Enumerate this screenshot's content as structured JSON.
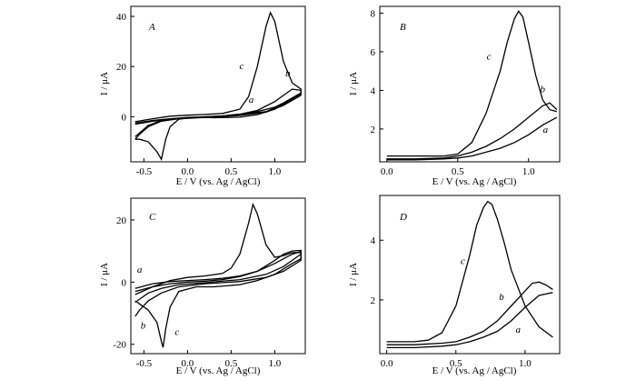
{
  "panels": [
    {
      "panel_label": "A",
      "ylabel": "I / μA",
      "xlabel": "E / V (vs. Ag / AgCl)"
    },
    {
      "panel_label": "B",
      "ylabel": "I / μA",
      "xlabel": "E / V (vs. Ag / AgCl)"
    },
    {
      "panel_label": "C",
      "ylabel": "I / μA",
      "xlabel": "E / V (vs. Ag / AgCl)"
    },
    {
      "panel_label": "D",
      "ylabel": "I / μA",
      "xlabel": "E / V (vs. Ag / AgCl)"
    }
  ],
  "chart_data": [
    {
      "panel": "A",
      "type": "line",
      "xlabel": "E / V (vs. Ag / AgCl)",
      "ylabel": "I / μA",
      "xlim": [
        -0.65,
        1.35
      ],
      "ylim": [
        -18,
        44
      ],
      "xticks": [
        -0.5,
        0.0,
        0.5,
        1.0
      ],
      "xtick_labels": [
        "-0.5",
        "0.0",
        "0.5",
        "1.0"
      ],
      "yticks": [
        0,
        20,
        40
      ],
      "ytick_labels": [
        "0",
        "20",
        "40"
      ],
      "series": [
        {
          "name": "a",
          "x": [
            -0.6,
            -0.4,
            -0.2,
            0.0,
            0.2,
            0.4,
            0.6,
            0.8,
            1.0,
            1.1,
            1.2,
            1.3,
            1.3,
            1.1,
            0.9,
            0.6,
            0.2,
            -0.1,
            -0.3,
            -0.45,
            -0.55,
            -0.6
          ],
          "y": [
            -2.5,
            -1.5,
            -0.8,
            -0.3,
            0.0,
            0.3,
            1.0,
            2.0,
            3.8,
            5.5,
            7.5,
            9.5,
            9.0,
            5.0,
            2.0,
            0.6,
            -0.2,
            -0.7,
            -1.5,
            -3.5,
            -6.5,
            -8.0
          ]
        },
        {
          "name": "b",
          "x": [
            -0.6,
            -0.4,
            -0.2,
            0.0,
            0.2,
            0.4,
            0.6,
            0.8,
            1.0,
            1.1,
            1.2,
            1.3,
            1.3,
            1.1,
            0.9,
            0.6,
            0.2,
            -0.1,
            -0.3,
            -0.45,
            -0.55,
            -0.6
          ],
          "y": [
            -3.0,
            -1.8,
            -1.0,
            -0.5,
            -0.1,
            0.3,
            1.0,
            2.5,
            6.0,
            8.5,
            11.0,
            10.5,
            8.5,
            4.5,
            1.8,
            0.5,
            -0.3,
            -0.8,
            -1.8,
            -4.0,
            -7.0,
            -9.0
          ]
        },
        {
          "name": "c",
          "x": [
            -0.6,
            -0.4,
            -0.2,
            0.0,
            0.2,
            0.4,
            0.6,
            0.7,
            0.8,
            0.9,
            0.95,
            1.0,
            1.1,
            1.2,
            1.3,
            1.3,
            1.2,
            1.0,
            0.8,
            0.6,
            0.3,
            0.1,
            -0.1,
            -0.2,
            -0.25,
            -0.3,
            -0.35,
            -0.45,
            -0.55,
            -0.6
          ],
          "y": [
            -2.0,
            -0.8,
            0.2,
            0.6,
            0.9,
            1.3,
            3.0,
            8.0,
            20.0,
            36.0,
            41.5,
            38.0,
            22.0,
            13.5,
            11.0,
            9.5,
            7.0,
            3.0,
            0.8,
            -0.2,
            -0.4,
            -0.2,
            -1.0,
            -4.0,
            -9.0,
            -17.0,
            -14.0,
            -10.0,
            -9.0,
            -9.0
          ]
        }
      ],
      "curve_labels": [
        {
          "text": "c",
          "x": 0.62,
          "y": 19
        },
        {
          "text": "a",
          "x": 0.73,
          "y": 5.5
        },
        {
          "text": "b",
          "x": 1.15,
          "y": 16
        }
      ]
    },
    {
      "panel": "B",
      "type": "line",
      "xlabel": "E / V (vs. Ag / AgCl)",
      "ylabel": "I / μA",
      "xlim": [
        -0.05,
        1.22
      ],
      "ylim": [
        0.3,
        8.35
      ],
      "xticks": [
        0.0,
        0.5,
        1.0
      ],
      "xtick_labels": [
        "0.0",
        "0.5",
        "1.0"
      ],
      "yticks": [
        2,
        4,
        6,
        8
      ],
      "ytick_labels": [
        "2",
        "4",
        "6",
        "8"
      ],
      "series": [
        {
          "name": "a",
          "x": [
            0.0,
            0.2,
            0.4,
            0.5,
            0.6,
            0.7,
            0.8,
            0.9,
            1.0,
            1.1,
            1.2
          ],
          "y": [
            0.4,
            0.4,
            0.45,
            0.5,
            0.6,
            0.8,
            1.0,
            1.3,
            1.7,
            2.2,
            2.6
          ]
        },
        {
          "name": "b",
          "x": [
            0.0,
            0.2,
            0.4,
            0.5,
            0.6,
            0.7,
            0.8,
            0.9,
            1.0,
            1.1,
            1.15,
            1.2
          ],
          "y": [
            0.45,
            0.45,
            0.5,
            0.6,
            0.8,
            1.1,
            1.5,
            2.0,
            2.6,
            3.2,
            3.35,
            3.0
          ]
        },
        {
          "name": "c",
          "x": [
            0.0,
            0.2,
            0.4,
            0.5,
            0.6,
            0.7,
            0.8,
            0.85,
            0.9,
            0.93,
            0.96,
            1.0,
            1.05,
            1.1,
            1.15,
            1.2
          ],
          "y": [
            0.6,
            0.6,
            0.6,
            0.7,
            1.3,
            2.8,
            5.0,
            6.5,
            7.7,
            8.1,
            7.8,
            6.5,
            4.8,
            3.5,
            3.0,
            2.9
          ]
        }
      ],
      "curve_labels": [
        {
          "text": "c",
          "x": 0.72,
          "y": 5.6
        },
        {
          "text": "b",
          "x": 1.1,
          "y": 3.9
        },
        {
          "text": "a",
          "x": 1.12,
          "y": 1.8
        }
      ]
    },
    {
      "panel": "C",
      "type": "line",
      "xlabel": "E / V (vs. Ag / AgCl)",
      "ylabel": "I / μA",
      "xlim": [
        -0.65,
        1.35
      ],
      "ylim": [
        -23,
        27
      ],
      "xticks": [
        -0.5,
        0.0,
        0.5,
        1.0
      ],
      "xtick_labels": [
        "-0.5",
        "0.0",
        "0.5",
        "1.0"
      ],
      "yticks": [
        -20,
        0,
        20
      ],
      "ytick_labels": [
        "-20",
        "0",
        "20"
      ],
      "series": [
        {
          "name": "a",
          "x": [
            -0.6,
            -0.4,
            -0.2,
            0.0,
            0.2,
            0.4,
            0.6,
            0.8,
            1.0,
            1.1,
            1.2,
            1.3,
            1.3,
            1.1,
            0.9,
            0.6,
            0.2,
            -0.1,
            -0.3,
            -0.45,
            -0.55,
            -0.6
          ],
          "y": [
            -2.0,
            -0.5,
            0.2,
            0.5,
            0.8,
            1.2,
            2.0,
            3.5,
            6.0,
            7.5,
            9.0,
            9.8,
            9.0,
            5.0,
            2.5,
            0.8,
            -0.2,
            -0.8,
            -2.0,
            -3.5,
            -5.5,
            -6.5
          ]
        },
        {
          "name": "b",
          "x": [
            -0.6,
            -0.4,
            -0.2,
            0.0,
            0.2,
            0.4,
            0.6,
            0.8,
            1.0,
            1.1,
            1.2,
            1.3,
            1.3,
            1.1,
            0.9,
            0.6,
            0.2,
            -0.1,
            -0.3,
            -0.45,
            -0.55,
            -0.6
          ],
          "y": [
            -3.0,
            -1.5,
            -0.5,
            0.0,
            0.3,
            0.8,
            1.8,
            3.5,
            7.0,
            9.0,
            10.0,
            10.2,
            7.0,
            3.5,
            1.5,
            0.2,
            -0.5,
            -1.5,
            -3.5,
            -6.0,
            -9.0,
            -11.0
          ]
        },
        {
          "name": "c",
          "x": [
            -0.6,
            -0.4,
            -0.2,
            0.0,
            0.2,
            0.4,
            0.5,
            0.6,
            0.7,
            0.75,
            0.8,
            0.9,
            1.0,
            1.1,
            1.2,
            1.3,
            1.3,
            1.2,
            1.0,
            0.8,
            0.6,
            0.3,
            0.1,
            -0.1,
            -0.2,
            -0.25,
            -0.28,
            -0.3,
            -0.35,
            -0.45,
            -0.55,
            -0.6
          ],
          "y": [
            -4.0,
            -1.5,
            0.5,
            1.5,
            2.0,
            2.8,
            4.5,
            9.0,
            19.0,
            25.0,
            22.0,
            12.0,
            8.0,
            8.5,
            9.5,
            9.5,
            7.5,
            6.0,
            2.5,
            0.5,
            -0.8,
            -1.5,
            -1.5,
            -3.0,
            -8.0,
            -15.0,
            -21.0,
            -19.0,
            -13.0,
            -9.0,
            -7.0,
            -6.0
          ]
        }
      ],
      "curve_labels": [
        {
          "text": "a",
          "x": -0.55,
          "y": 3
        },
        {
          "text": "b",
          "x": -0.51,
          "y": -15
        },
        {
          "text": "c",
          "x": -0.12,
          "y": -17
        }
      ]
    },
    {
      "panel": "D",
      "type": "line",
      "xlabel": "E / V (vs. Ag / AgCl)",
      "ylabel": "I / μA",
      "xlim": [
        -0.05,
        1.25
      ],
      "ylim": [
        0.2,
        5.5
      ],
      "xticks": [
        0.0,
        0.5,
        1.0
      ],
      "xtick_labels": [
        "0.0",
        "0.5",
        "1.0"
      ],
      "yticks": [
        2,
        4
      ],
      "ytick_labels": [
        "2",
        "4"
      ],
      "series": [
        {
          "name": "a",
          "x": [
            0.0,
            0.2,
            0.4,
            0.5,
            0.6,
            0.7,
            0.8,
            0.9,
            1.0,
            1.1,
            1.2
          ],
          "y": [
            0.4,
            0.4,
            0.45,
            0.5,
            0.6,
            0.75,
            0.95,
            1.3,
            1.75,
            2.15,
            2.25
          ]
        },
        {
          "name": "b",
          "x": [
            0.0,
            0.2,
            0.4,
            0.5,
            0.6,
            0.7,
            0.8,
            0.9,
            1.0,
            1.05,
            1.1,
            1.15,
            1.2
          ],
          "y": [
            0.5,
            0.5,
            0.55,
            0.6,
            0.75,
            0.95,
            1.3,
            1.8,
            2.3,
            2.55,
            2.6,
            2.5,
            2.35
          ]
        },
        {
          "name": "c",
          "x": [
            0.0,
            0.2,
            0.3,
            0.4,
            0.5,
            0.6,
            0.65,
            0.7,
            0.73,
            0.76,
            0.8,
            0.85,
            0.9,
            1.0,
            1.1,
            1.2
          ],
          "y": [
            0.6,
            0.6,
            0.65,
            0.9,
            1.8,
            3.5,
            4.5,
            5.1,
            5.3,
            5.2,
            4.7,
            3.9,
            3.0,
            1.8,
            1.1,
            0.75
          ]
        }
      ],
      "curve_labels": [
        {
          "text": "c",
          "x": 0.55,
          "y": 3.2
        },
        {
          "text": "b",
          "x": 0.83,
          "y": 2.0
        },
        {
          "text": "a",
          "x": 0.95,
          "y": 0.9
        }
      ]
    }
  ]
}
